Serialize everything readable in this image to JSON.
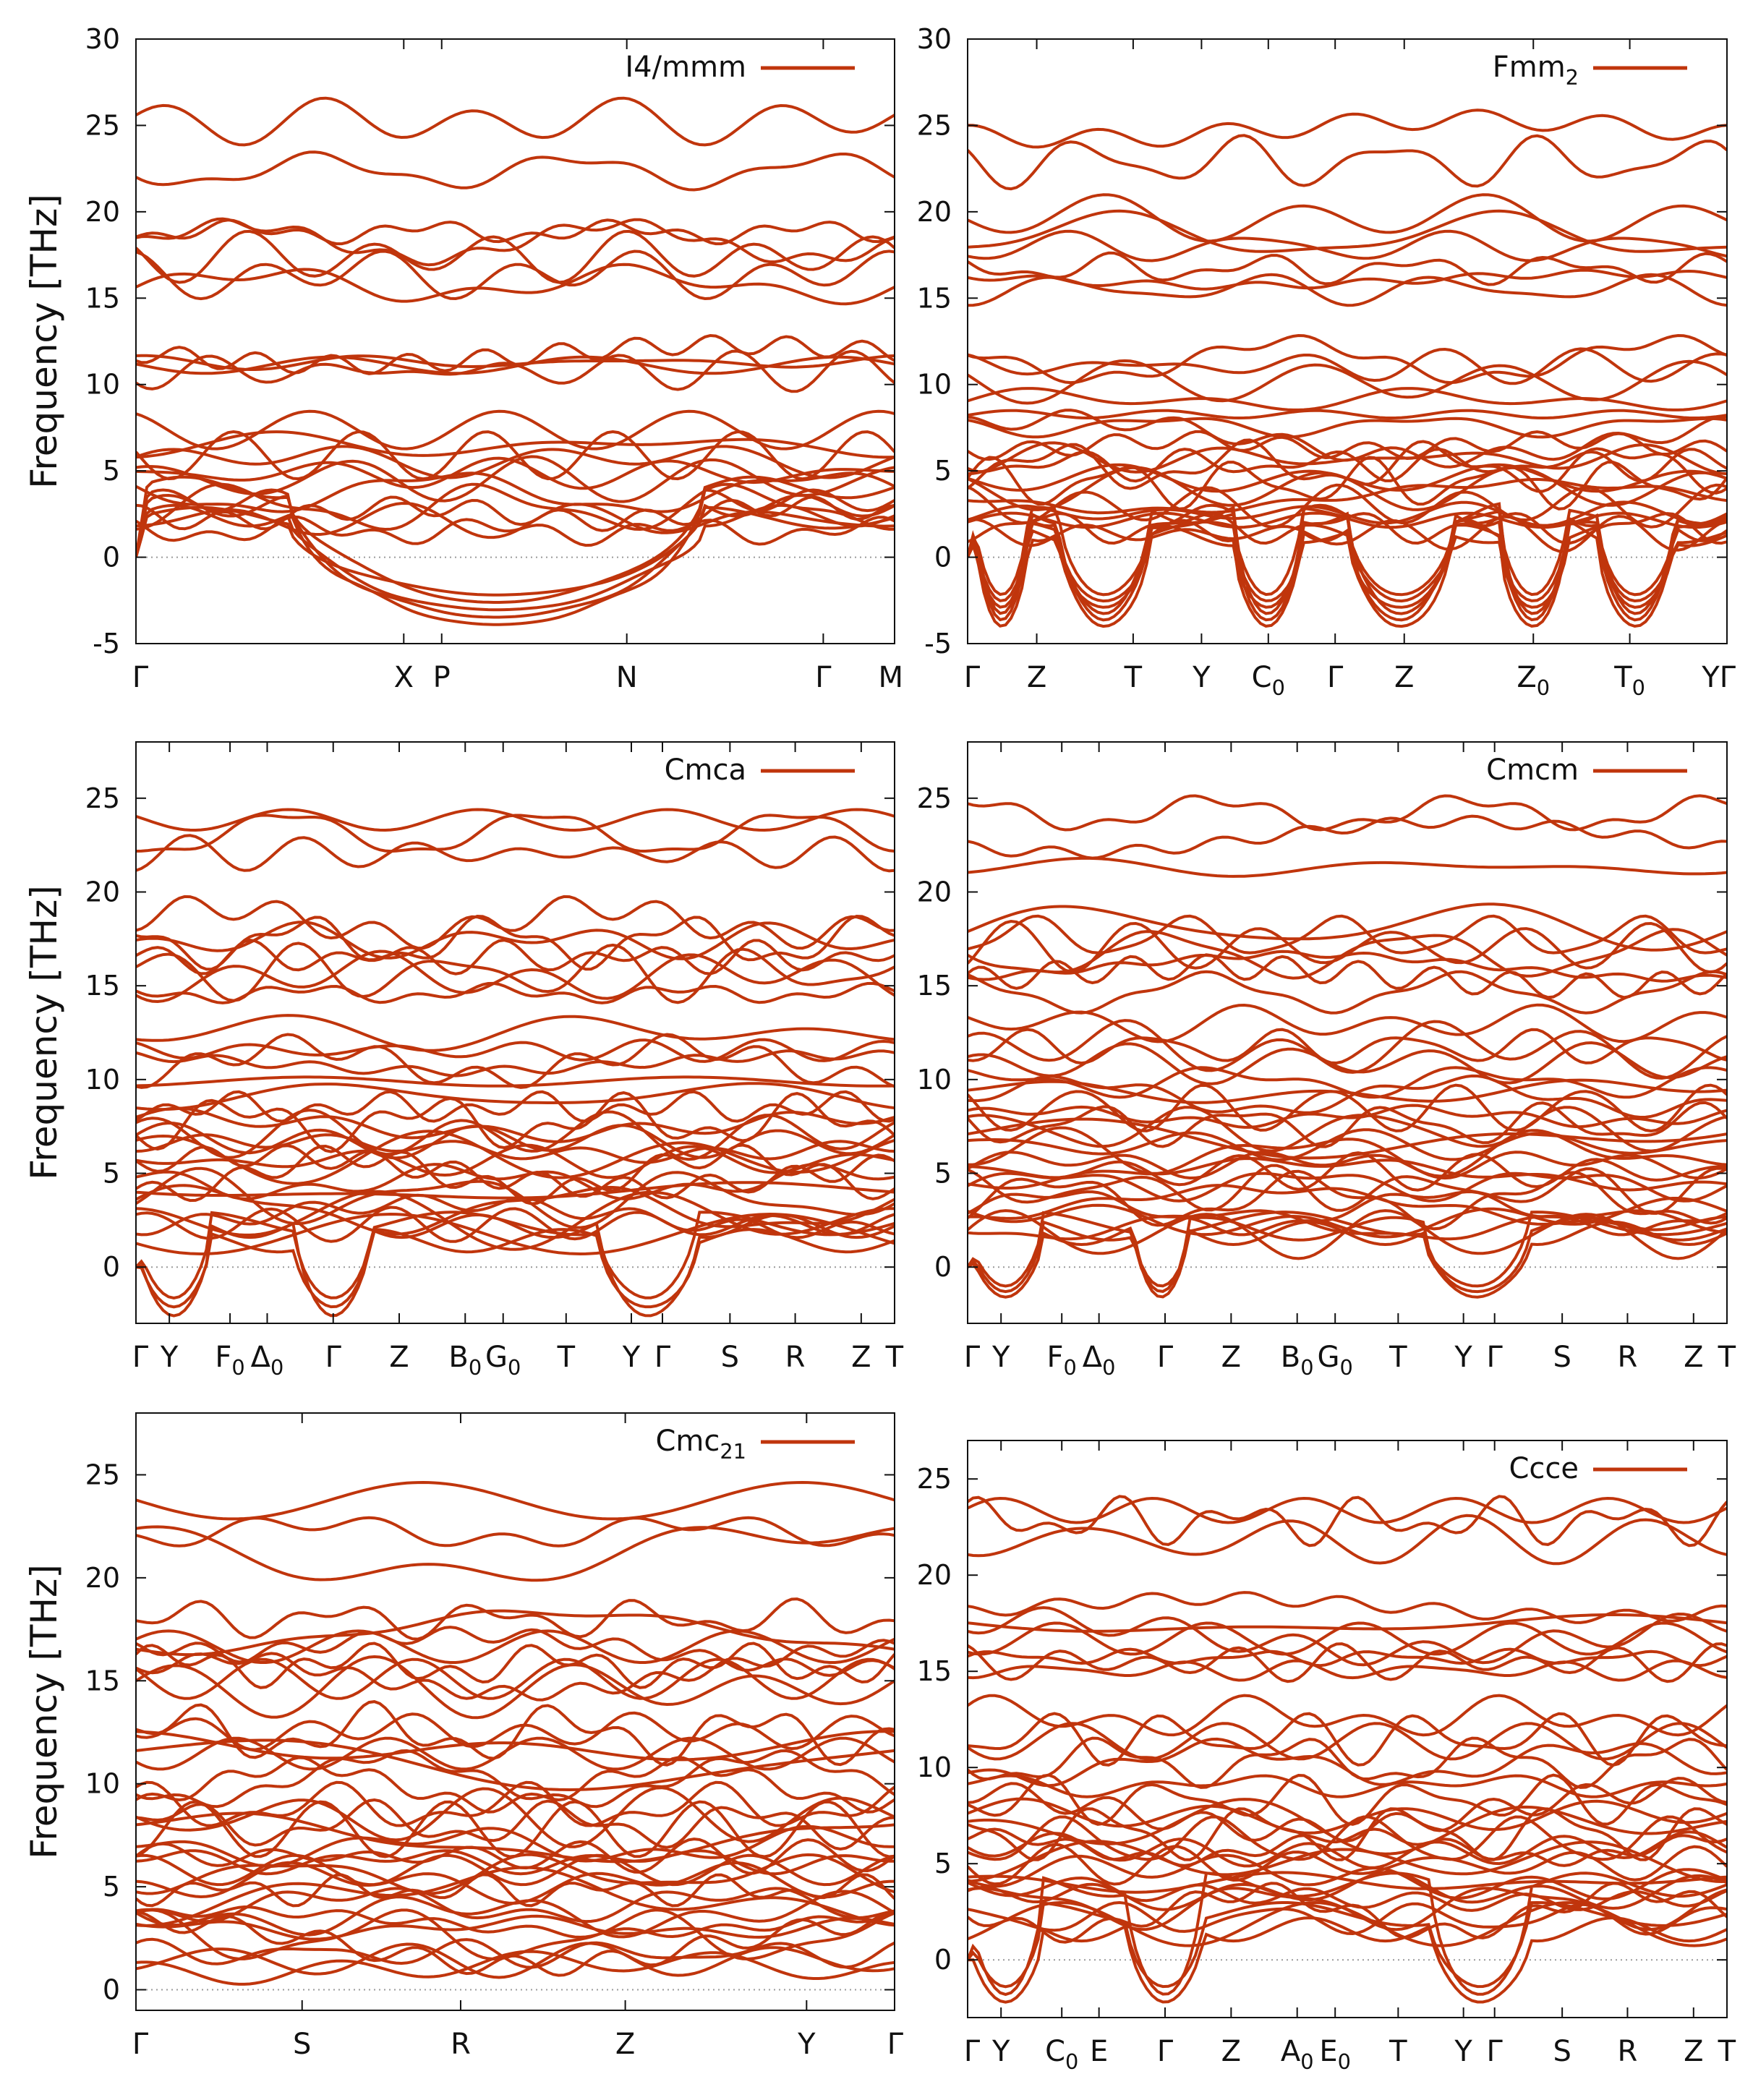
{
  "style": {
    "line_color": "#c0350c",
    "axis_color": "#111111",
    "zero_line_color": "#9a9a9a",
    "background": "#ffffff"
  },
  "chart_data": [
    {
      "id": "p1",
      "type": "line",
      "legend": "I4/mmm",
      "ylabel": "Frequency [THz]",
      "ylim": [
        -5,
        30
      ],
      "yticks": [
        -5,
        0,
        5,
        10,
        15,
        20,
        25,
        30
      ],
      "xlim": [
        0,
        1
      ],
      "grid": false,
      "kpoints": [
        {
          "label": "Γ",
          "x": 0.0
        },
        {
          "label": "X",
          "x": 0.353
        },
        {
          "label": "P",
          "x": 0.403
        },
        {
          "label": "N",
          "x": 0.647
        },
        {
          "label": "Γ",
          "x": 0.906
        },
        {
          "label": "M",
          "x": 1.0
        }
      ],
      "seed": 11,
      "optic_bands": 26,
      "neg_bands": 5,
      "neg_min": -3.9,
      "neg_dips": [
        [
          0.2,
          0.75
        ]
      ],
      "optic_ranges": [
        [
          1.0,
          7.6,
          11
        ],
        [
          10.5,
          12.0,
          4
        ],
        [
          15.2,
          19.5,
          5
        ],
        [
          21.8,
          25.5,
          2
        ]
      ]
    },
    {
      "id": "p2",
      "type": "line",
      "legend": "Fmm2",
      "ylabel": "",
      "ylim": [
        -5,
        30
      ],
      "yticks": [
        -5,
        0,
        5,
        10,
        15,
        20,
        25,
        30
      ],
      "xlim": [
        0,
        1
      ],
      "grid": false,
      "kpoints": [
        {
          "label": "Γ",
          "x": 0.0
        },
        {
          "label": "Z",
          "x": 0.091
        },
        {
          "label": "T",
          "x": 0.218
        },
        {
          "label": "Y",
          "x": 0.308
        },
        {
          "label": "C0",
          "x": 0.396
        },
        {
          "label": "Γ",
          "x": 0.484
        },
        {
          "label": "Z",
          "x": 0.575
        },
        {
          "label": "Z0",
          "x": 0.745
        },
        {
          "label": "T0",
          "x": 0.872
        },
        {
          "label": "YΓ",
          "x": 1.0
        }
      ],
      "seed": 23,
      "optic_bands": 30,
      "neg_bands": 6,
      "neg_min": -4.0,
      "neg_dips": [
        [
          0.01,
          0.08
        ],
        [
          0.12,
          0.24
        ],
        [
          0.35,
          0.44
        ],
        [
          0.5,
          0.64
        ],
        [
          0.7,
          0.79
        ],
        [
          0.83,
          0.93
        ]
      ],
      "optic_ranges": [
        [
          1.0,
          7.0,
          14
        ],
        [
          7.5,
          12.0,
          6
        ],
        [
          15.0,
          19.8,
          6
        ],
        [
          22.0,
          25.6,
          2
        ]
      ]
    },
    {
      "id": "p3",
      "type": "line",
      "legend": "Cmca",
      "ylabel": "Frequency [THz]",
      "ylim": [
        -3,
        28
      ],
      "yticks": [
        0,
        5,
        10,
        15,
        20,
        25
      ],
      "xlim": [
        0,
        1
      ],
      "grid": false,
      "kpoints": [
        {
          "label": "Γ",
          "x": 0.0
        },
        {
          "label": "Y",
          "x": 0.044
        },
        {
          "label": "F0",
          "x": 0.124
        },
        {
          "label": "Δ0",
          "x": 0.173
        },
        {
          "label": "Γ",
          "x": 0.26
        },
        {
          "label": "Z",
          "x": 0.347
        },
        {
          "label": "B0",
          "x": 0.434
        },
        {
          "label": "G0",
          "x": 0.484
        },
        {
          "label": "T",
          "x": 0.567
        },
        {
          "label": "Y",
          "x": 0.653
        },
        {
          "label": "Γ",
          "x": 0.694
        },
        {
          "label": "S",
          "x": 0.783
        },
        {
          "label": "R",
          "x": 0.869
        },
        {
          "label": "Z",
          "x": 0.956
        },
        {
          "label": "T",
          "x": 1.0
        }
      ],
      "seed": 37,
      "optic_bands": 36,
      "neg_bands": 3,
      "neg_min": -2.6,
      "neg_dips": [
        [
          0.0,
          0.1
        ],
        [
          0.21,
          0.31
        ],
        [
          0.61,
          0.74
        ]
      ],
      "optic_ranges": [
        [
          1.5,
          8.5,
          18
        ],
        [
          9.0,
          12.8,
          6
        ],
        [
          14.5,
          18.5,
          7
        ],
        [
          21.0,
          24.5,
          3
        ]
      ]
    },
    {
      "id": "p4",
      "type": "line",
      "legend": "Cmcm",
      "ylabel": "",
      "ylim": [
        -3,
        28
      ],
      "yticks": [
        0,
        5,
        10,
        15,
        20,
        25
      ],
      "xlim": [
        0,
        1
      ],
      "grid": false,
      "kpoints": [
        {
          "label": "Γ",
          "x": 0.0
        },
        {
          "label": "Y",
          "x": 0.044
        },
        {
          "label": "F0",
          "x": 0.124
        },
        {
          "label": "Δ0",
          "x": 0.173
        },
        {
          "label": "Γ",
          "x": 0.26
        },
        {
          "label": "Z",
          "x": 0.347
        },
        {
          "label": "B0",
          "x": 0.434
        },
        {
          "label": "G0",
          "x": 0.484
        },
        {
          "label": "T",
          "x": 0.567
        },
        {
          "label": "Y",
          "x": 0.653
        },
        {
          "label": "Γ",
          "x": 0.694
        },
        {
          "label": "S",
          "x": 0.783
        },
        {
          "label": "R",
          "x": 0.869
        },
        {
          "label": "Z",
          "x": 0.956
        },
        {
          "label": "T",
          "x": 1.0
        }
      ],
      "seed": 41,
      "optic_bands": 38,
      "neg_bands": 3,
      "neg_min": -1.6,
      "neg_dips": [
        [
          0.0,
          0.1
        ],
        [
          0.22,
          0.29
        ],
        [
          0.6,
          0.74
        ]
      ],
      "optic_ranges": [
        [
          1.5,
          8.5,
          18
        ],
        [
          8.5,
          13.0,
          7
        ],
        [
          14.5,
          18.5,
          7
        ],
        [
          21.0,
          24.5,
          3
        ]
      ]
    },
    {
      "id": "p5",
      "type": "line",
      "legend": "Cmc21",
      "ylabel": "Frequency [THz]",
      "ylim": [
        -1,
        28
      ],
      "yticks": [
        0,
        5,
        10,
        15,
        20,
        25
      ],
      "xlim": [
        0,
        1
      ],
      "grid": false,
      "kpoints": [
        {
          "label": "Γ",
          "x": 0.0
        },
        {
          "label": "S",
          "x": 0.219
        },
        {
          "label": "R",
          "x": 0.428
        },
        {
          "label": "Z",
          "x": 0.645
        },
        {
          "label": "Y",
          "x": 0.884
        },
        {
          "label": "Γ",
          "x": 1.0
        }
      ],
      "seed": 53,
      "optic_bands": 40,
      "neg_bands": 0,
      "neg_min": 0,
      "neg_dips": [],
      "optic_ranges": [
        [
          1.0,
          9.0,
          22
        ],
        [
          9.5,
          13.0,
          7
        ],
        [
          14.2,
          18.0,
          8
        ],
        [
          21.0,
          24.0,
          3
        ]
      ]
    },
    {
      "id": "p6",
      "type": "line",
      "legend": "Ccce",
      "ylabel": "",
      "ylim": [
        -3,
        27
      ],
      "yticks": [
        0,
        5,
        10,
        15,
        20,
        25
      ],
      "xlim": [
        0,
        1
      ],
      "grid": false,
      "kpoints": [
        {
          "label": "Γ",
          "x": 0.0
        },
        {
          "label": "Y",
          "x": 0.044
        },
        {
          "label": "C0",
          "x": 0.124
        },
        {
          "label": "E",
          "x": 0.173
        },
        {
          "label": "Γ",
          "x": 0.26
        },
        {
          "label": "Z",
          "x": 0.347
        },
        {
          "label": "A0",
          "x": 0.434
        },
        {
          "label": "E0",
          "x": 0.484
        },
        {
          "label": "T",
          "x": 0.567
        },
        {
          "label": "Y",
          "x": 0.653
        },
        {
          "label": "Γ",
          "x": 0.694
        },
        {
          "label": "S",
          "x": 0.783
        },
        {
          "label": "R",
          "x": 0.869
        },
        {
          "label": "Z",
          "x": 0.956
        },
        {
          "label": "T",
          "x": 1.0
        }
      ],
      "seed": 67,
      "optic_bands": 38,
      "neg_bands": 3,
      "neg_min": -2.2,
      "neg_dips": [
        [
          0.0,
          0.1
        ],
        [
          0.21,
          0.31
        ],
        [
          0.61,
          0.74
        ]
      ],
      "optic_ranges": [
        [
          1.5,
          8.5,
          18
        ],
        [
          9.0,
          12.8,
          6
        ],
        [
          14.5,
          18.5,
          7
        ],
        [
          21.0,
          24.5,
          3
        ]
      ]
    }
  ]
}
